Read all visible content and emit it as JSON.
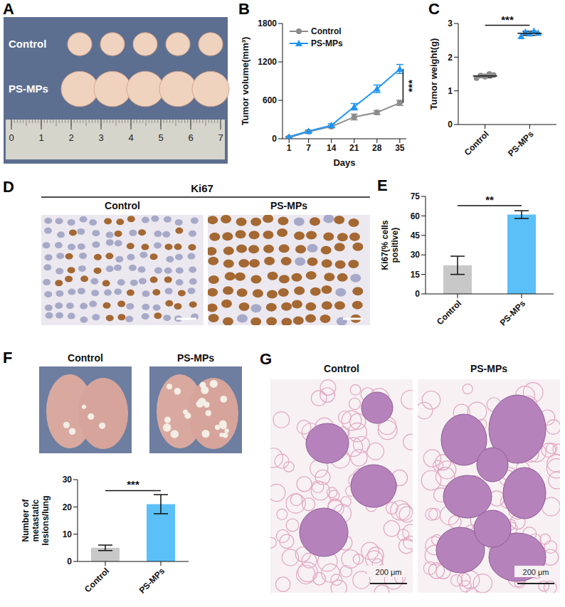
{
  "chart_data": [
    {
      "panel": "B",
      "type": "line",
      "x": [
        1,
        7,
        14,
        21,
        28,
        35
      ],
      "xlabel": "Days",
      "ylabel": "Tumor volume(mm³)",
      "xlim": [
        -1,
        37
      ],
      "xticks": [
        1,
        7,
        14,
        21,
        28,
        35
      ],
      "ylim": [
        0,
        1800
      ],
      "yticks": [
        0,
        600,
        1200,
        1800
      ],
      "legend": "upper left",
      "significance": "***",
      "series": [
        {
          "name": "Control",
          "color": "#8c8c8c",
          "marker": "circle",
          "values": [
            20,
            110,
            190,
            340,
            410,
            560
          ],
          "errors": [
            8,
            15,
            20,
            45,
            30,
            40
          ]
        },
        {
          "name": "PS-MPs",
          "color": "#2196f3",
          "marker": "triangle",
          "values": [
            30,
            120,
            210,
            500,
            780,
            1090
          ],
          "errors": [
            8,
            15,
            25,
            50,
            60,
            70
          ]
        }
      ]
    },
    {
      "panel": "C",
      "type": "scatter",
      "categories": [
        "Control",
        "PS-MPs"
      ],
      "ylabel": "Tumor weight(g)",
      "ylim": [
        0,
        3
      ],
      "yticks": [
        0,
        1,
        2,
        3
      ],
      "significance": "***",
      "groups": [
        {
          "color": "#8c8c8c",
          "marker": "circle",
          "values": [
            1.38,
            1.45,
            1.42,
            1.5,
            1.47
          ],
          "mean": 1.44,
          "error": 0.05
        },
        {
          "color": "#2196f3",
          "marker": "triangle",
          "values": [
            2.62,
            2.75,
            2.7,
            2.78,
            2.72
          ],
          "mean": 2.71,
          "error": 0.06
        }
      ]
    },
    {
      "panel": "E",
      "type": "bar",
      "categories": [
        "Control",
        "PS-MPs"
      ],
      "values": [
        22,
        61
      ],
      "errors": [
        7,
        3
      ],
      "colors": [
        "#c8c8c8",
        "#5bc0f8"
      ],
      "ylabel": "Ki67(% cells positive)",
      "ylim": [
        0,
        75
      ],
      "yticks": [
        0,
        15,
        30,
        45,
        60,
        75
      ],
      "significance": "**"
    },
    {
      "panel": "F",
      "type": "bar",
      "categories": [
        "Control",
        "PS-MPs"
      ],
      "values": [
        5,
        21
      ],
      "errors": [
        1,
        3.5
      ],
      "colors": [
        "#c8c8c8",
        "#5bc0f8"
      ],
      "ylabel": "Number of metastatic lesions/lung",
      "ylim": [
        0,
        30
      ],
      "yticks": [
        0,
        10,
        20,
        30
      ],
      "significance": "***"
    }
  ],
  "images": [
    {
      "panel": "A",
      "rows": [
        "Control",
        "PS-MPs"
      ],
      "ruler": [
        0,
        1,
        2,
        3,
        4,
        5,
        6,
        7
      ]
    },
    {
      "panel": "D",
      "title": "Ki67",
      "columns": [
        "Control",
        "PS-MPs"
      ]
    },
    {
      "columns": [
        "Control",
        "PS-MPs"
      ]
    },
    {
      "panel": "G",
      "columns": [
        "Control",
        "PS-MPs"
      ],
      "scale_bar": "200 μm"
    }
  ]
}
